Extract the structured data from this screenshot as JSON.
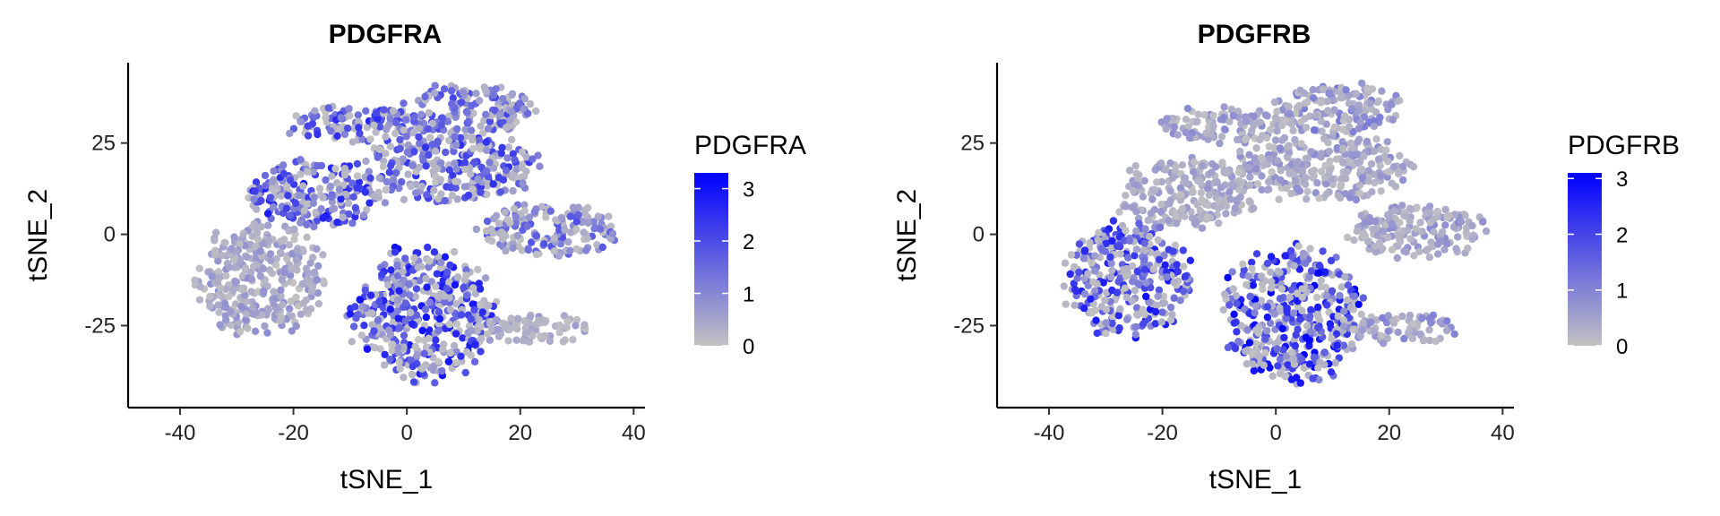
{
  "chart_data": [
    {
      "type": "scatter",
      "title": "PDGFRA",
      "xlabel": "tSNE_1",
      "ylabel": "tSNE_2",
      "xlim": [
        -46,
        42
      ],
      "ylim": [
        -45,
        47
      ],
      "xticks": [
        -40,
        -20,
        0,
        20,
        40
      ],
      "yticks": [
        -25,
        0,
        25
      ],
      "xtick_labels": [
        "-40",
        "-20",
        "0",
        "20",
        "40"
      ],
      "ytick_labels": [
        "-25",
        "0",
        "25"
      ],
      "legend": {
        "title": "PDGFRA",
        "placement": "right",
        "range": [
          0,
          3.3
        ],
        "breaks": [
          0,
          1,
          2,
          3
        ],
        "labels": [
          "0",
          "1",
          "2",
          "3"
        ],
        "low_color": "#c2c2c2",
        "high_color": "#0000ff"
      },
      "clusters": [
        {
          "name": "top-center",
          "cx": 11,
          "cy": 34,
          "rx": 11,
          "ry": 7,
          "expr_mean": 1.2
        },
        {
          "name": "upper-left-strip",
          "cx": -9,
          "cy": 30,
          "rx": 12,
          "ry": 5,
          "expr_mean": 1.5
        },
        {
          "name": "upper-middle",
          "cx": 8,
          "cy": 18,
          "rx": 15,
          "ry": 9,
          "expr_mean": 1.4
        },
        {
          "name": "left-upper",
          "cx": -16,
          "cy": 11,
          "rx": 12,
          "ry": 9,
          "expr_mean": 1.6
        },
        {
          "name": "right",
          "cx": 25,
          "cy": 1,
          "rx": 12,
          "ry": 7,
          "expr_mean": 1.1
        },
        {
          "name": "left-lower",
          "cx": -26,
          "cy": -12,
          "rx": 11,
          "ry": 15,
          "expr_mean": 0.5
        },
        {
          "name": "center-bottom",
          "cx": 3,
          "cy": -22,
          "rx": 12,
          "ry": 18,
          "expr_mean": 1.7
        },
        {
          "name": "right-tail",
          "cx": 22,
          "cy": -26,
          "rx": 10,
          "ry": 4,
          "expr_mean": 0.4
        }
      ]
    },
    {
      "type": "scatter",
      "title": "PDGFRB",
      "xlabel": "tSNE_1",
      "ylabel": "tSNE_2",
      "xlim": [
        -46,
        42
      ],
      "ylim": [
        -45,
        47
      ],
      "xticks": [
        -40,
        -20,
        0,
        20,
        40
      ],
      "yticks": [
        -25,
        0,
        25
      ],
      "xtick_labels": [
        "-40",
        "-20",
        "0",
        "20",
        "40"
      ],
      "ytick_labels": [
        "-25",
        "0",
        "25"
      ],
      "legend": {
        "title": "PDGFRB",
        "placement": "right",
        "range": [
          0,
          3.1
        ],
        "breaks": [
          0,
          1,
          2,
          3
        ],
        "labels": [
          "0",
          "1",
          "2",
          "3"
        ],
        "low_color": "#c2c2c2",
        "high_color": "#0000ff"
      },
      "clusters": [
        {
          "name": "top-center",
          "cx": 11,
          "cy": 34,
          "rx": 11,
          "ry": 7,
          "expr_mean": 0.7
        },
        {
          "name": "upper-left-strip",
          "cx": -9,
          "cy": 30,
          "rx": 12,
          "ry": 5,
          "expr_mean": 0.5
        },
        {
          "name": "upper-middle",
          "cx": 8,
          "cy": 18,
          "rx": 15,
          "ry": 9,
          "expr_mean": 0.5
        },
        {
          "name": "left-upper",
          "cx": -16,
          "cy": 11,
          "rx": 12,
          "ry": 9,
          "expr_mean": 0.4
        },
        {
          "name": "right",
          "cx": 25,
          "cy": 1,
          "rx": 12,
          "ry": 7,
          "expr_mean": 0.5
        },
        {
          "name": "left-lower",
          "cx": -26,
          "cy": -12,
          "rx": 11,
          "ry": 15,
          "expr_mean": 1.6
        },
        {
          "name": "center-bottom",
          "cx": 3,
          "cy": -22,
          "rx": 12,
          "ry": 18,
          "expr_mean": 1.8
        },
        {
          "name": "right-tail",
          "cx": 22,
          "cy": -26,
          "rx": 10,
          "ry": 4,
          "expr_mean": 0.6
        }
      ]
    }
  ]
}
